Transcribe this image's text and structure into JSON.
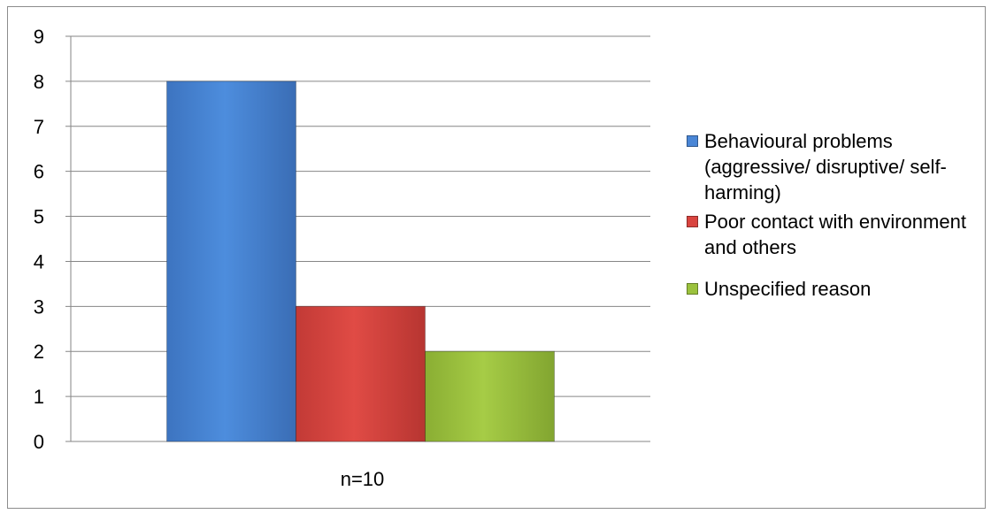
{
  "chart_data": {
    "type": "bar",
    "categories": [
      "n=10"
    ],
    "series": [
      {
        "name": "Behavioural problems (aggressive/ disruptive/ self-harming)",
        "values": [
          8
        ],
        "color": "#4a86d6"
      },
      {
        "name": "Poor contact with environment and others",
        "values": [
          3
        ],
        "color": "#d9443f"
      },
      {
        "name": "Unspecified reason",
        "values": [
          2
        ],
        "color": "#9bc23d"
      }
    ],
    "ylim": [
      0,
      9
    ],
    "yticks": [
      "0",
      "1",
      "2",
      "3",
      "4",
      "5",
      "6",
      "7",
      "8",
      "9"
    ],
    "grid": true,
    "legend_position": "right"
  }
}
